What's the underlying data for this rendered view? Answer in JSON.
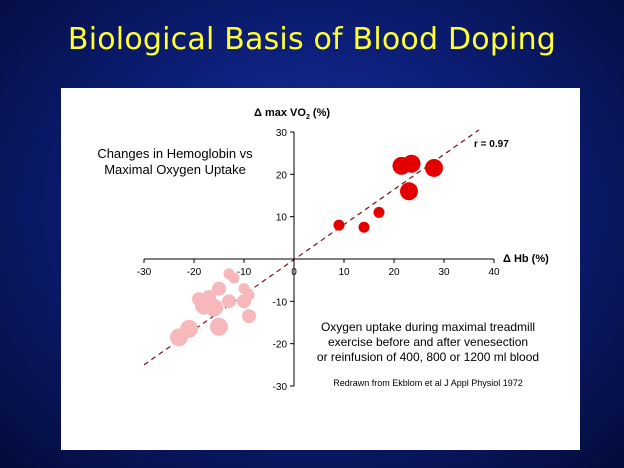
{
  "slide": {
    "title": "Biological Basis of Blood Doping"
  },
  "chart_data": {
    "type": "scatter",
    "title": "Changes in Hemoglobin vs\nMaximal Oxygen Uptake",
    "xlabel": "Δ Hb (%)",
    "ylabel_main": "Δ max VO",
    "ylabel_sub": "2",
    "ylabel_unit": " (%)",
    "xlim": [
      -30,
      40
    ],
    "ylim": [
      -30,
      30
    ],
    "x_ticks": [
      -30,
      -20,
      -10,
      0,
      10,
      20,
      30,
      40
    ],
    "y_ticks": [
      -30,
      -20,
      -10,
      0,
      10,
      20,
      30
    ],
    "grid": false,
    "annotation_r": "r = 0.97",
    "note": "Oxygen uptake during maximal treadmill\nexercise before and after venesection\nor reinfusion of 400, 800 or 1200 ml blood",
    "source": "Redrawn from Ekblom et al J Appl Physiol 1972",
    "trend_line": {
      "x": [
        -30,
        37
      ],
      "y": [
        -25,
        30.5
      ]
    },
    "series": [
      {
        "color": "#e50000",
        "points": [
          {
            "x": 9,
            "y": 8,
            "size": 1
          },
          {
            "x": 14,
            "y": 7.5,
            "size": 1
          },
          {
            "x": 17,
            "y": 11,
            "size": 1
          },
          {
            "x": 21.5,
            "y": 22,
            "size": 3
          },
          {
            "x": 23.5,
            "y": 22.5,
            "size": 3
          },
          {
            "x": 23,
            "y": 16,
            "size": 3
          },
          {
            "x": 28,
            "y": 21.5,
            "size": 3
          }
        ]
      },
      {
        "color": "#f6b8ba",
        "points": [
          {
            "x": -13,
            "y": -3.5,
            "size": 1
          },
          {
            "x": -12,
            "y": -4.5,
            "size": 1
          },
          {
            "x": -10,
            "y": -7,
            "size": 1
          },
          {
            "x": -9,
            "y": -8.5,
            "size": 1
          },
          {
            "x": -15,
            "y": -7,
            "size": 2
          },
          {
            "x": -17,
            "y": -9,
            "size": 2
          },
          {
            "x": -19,
            "y": -9.5,
            "size": 2
          },
          {
            "x": -13,
            "y": -10,
            "size": 2
          },
          {
            "x": -10,
            "y": -10,
            "size": 2
          },
          {
            "x": -18,
            "y": -11,
            "size": 3
          },
          {
            "x": -16,
            "y": -11.5,
            "size": 3
          },
          {
            "x": -9,
            "y": -13.5,
            "size": 2
          },
          {
            "x": -15,
            "y": -16,
            "size": 3
          },
          {
            "x": -21,
            "y": -16.5,
            "size": 3
          },
          {
            "x": -23,
            "y": -18.5,
            "size": 3
          }
        ]
      }
    ]
  }
}
